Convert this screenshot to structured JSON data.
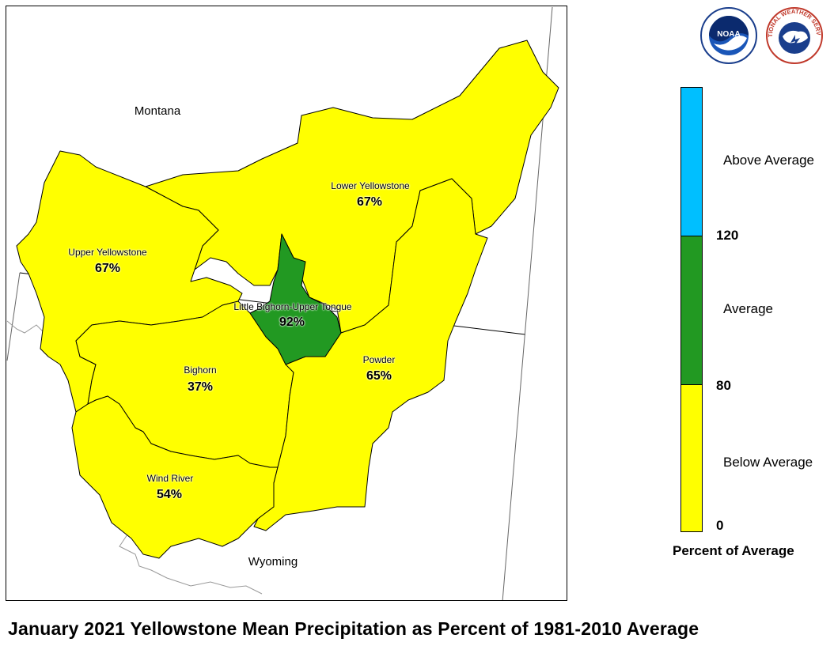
{
  "states": {
    "montana": "Montana",
    "wyoming": "Wyoming"
  },
  "basins": [
    {
      "name": "Lower Yellowstone",
      "percent": "67%",
      "category": "below"
    },
    {
      "name": "Upper Yellowstone",
      "percent": "67%",
      "category": "below"
    },
    {
      "name": "Little Bighorn-Upper Tongue",
      "percent": "92%",
      "category": "average"
    },
    {
      "name": "Bighorn",
      "percent": "37%",
      "category": "below"
    },
    {
      "name": "Powder",
      "percent": "65%",
      "category": "below"
    },
    {
      "name": "Wind River",
      "percent": "54%",
      "category": "below"
    }
  ],
  "legend": {
    "title": "Percent of Average",
    "categories": [
      {
        "label": "Above Average",
        "color": "#00BFFF",
        "min": 120
      },
      {
        "label": "Average",
        "color": "#229922",
        "min": 80,
        "max": 120
      },
      {
        "label": "Below Average",
        "color": "#FFFF00",
        "min": 0,
        "max": 80
      }
    ],
    "ticks": [
      "120",
      "80",
      "0"
    ]
  },
  "colors": {
    "below_average": "#FFFF00",
    "average": "#229922",
    "above_average": "#00BFFF"
  },
  "logos": [
    {
      "name": "noaa-logo",
      "text": "NOAA"
    },
    {
      "name": "nws-logo",
      "text": "NATIONAL WEATHER SERVICE"
    }
  ],
  "title": "January 2021 Yellowstone Mean Precipitation as Percent of 1981-2010 Average"
}
